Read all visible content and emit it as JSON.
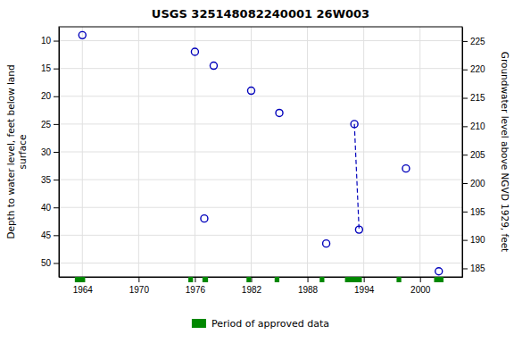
{
  "chart_data": {
    "type": "scatter",
    "title": "USGS 325148082240001 26W003",
    "ylabel": "Depth to water level, feet below land\nsurface",
    "y2label": "Groundwater level above NGVD 1929, feet",
    "xlim": [
      1961.5,
      2004.5
    ],
    "xticks": [
      1964,
      1970,
      1976,
      1982,
      1988,
      1994,
      2000
    ],
    "ylim": [
      52.5,
      7.5
    ],
    "yticks": [
      10,
      15,
      20,
      25,
      30,
      35,
      40,
      45,
      50
    ],
    "y2lim": [
      183.5,
      227.5
    ],
    "y2ticks": [
      185,
      190,
      195,
      200,
      205,
      210,
      215,
      220,
      225
    ],
    "grid": true,
    "legend": "bottom",
    "series": [
      {
        "type": "scatter",
        "marker": "circle",
        "color": "#0000bb",
        "x": [
          1964.0,
          1976.0,
          1978.0,
          1977.0,
          1982.0,
          1985.0,
          1990.0,
          1993.5,
          1993.0,
          1998.5,
          2002.0
        ],
        "values": [
          9.0,
          12.0,
          14.5,
          42.0,
          19.0,
          23.0,
          46.5,
          44.0,
          25.0,
          33.0,
          51.5
        ]
      },
      {
        "type": "line",
        "line_style": "dashed",
        "color": "#0000bb",
        "x": [
          1993.0,
          1993.5
        ],
        "values": [
          25.0,
          44.0
        ]
      },
      {
        "type": "span",
        "name": "Period of approved data",
        "color": "#008800",
        "periods": [
          [
            1963.2,
            1964.3
          ],
          [
            1975.3,
            1975.8
          ],
          [
            1976.8,
            1977.4
          ],
          [
            1981.5,
            1982.0
          ],
          [
            1984.5,
            1985.0
          ],
          [
            1989.3,
            1989.8
          ],
          [
            1992.0,
            1993.8
          ],
          [
            1997.5,
            1998.0
          ],
          [
            2001.5,
            2002.5
          ]
        ]
      }
    ]
  }
}
